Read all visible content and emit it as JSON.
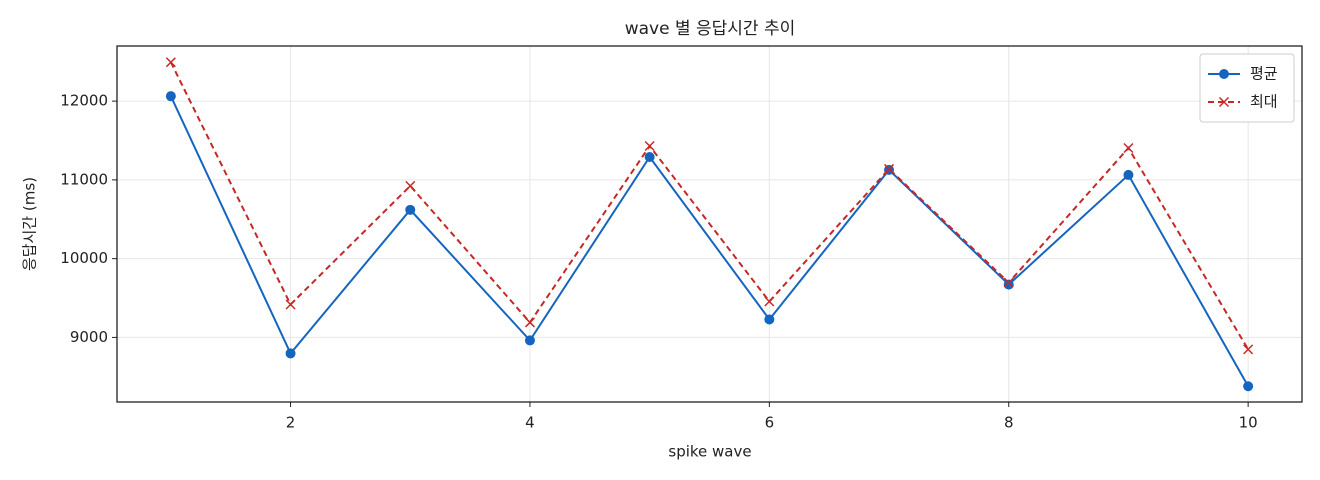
{
  "chart_data": {
    "type": "line",
    "title": "wave 별 응답시간 추이",
    "xlabel": "spike wave",
    "ylabel": "응답시간 (ms)",
    "x": [
      1,
      2,
      3,
      4,
      5,
      6,
      7,
      8,
      9,
      10
    ],
    "series": [
      {
        "name": "평균",
        "color": "#1565c0",
        "linestyle": "solid",
        "marker": "o",
        "values": [
          12063,
          8797,
          10620,
          8962,
          11291,
          9228,
          11127,
          9671,
          11063,
          8380
        ]
      },
      {
        "name": "최대",
        "color": "#c62828",
        "linestyle": "dashed",
        "marker": "x",
        "values": [
          12494,
          9418,
          10924,
          9190,
          11430,
          9456,
          11139,
          9696,
          11405,
          8848
        ]
      }
    ],
    "xlim": [
      0.55,
      10.45
    ],
    "xticks": [
      2,
      4,
      6,
      8,
      10
    ],
    "ylim": [
      8180,
      12700
    ],
    "yticks": [
      9000,
      10000,
      11000,
      12000
    ],
    "grid": true,
    "legend": "upper right"
  }
}
